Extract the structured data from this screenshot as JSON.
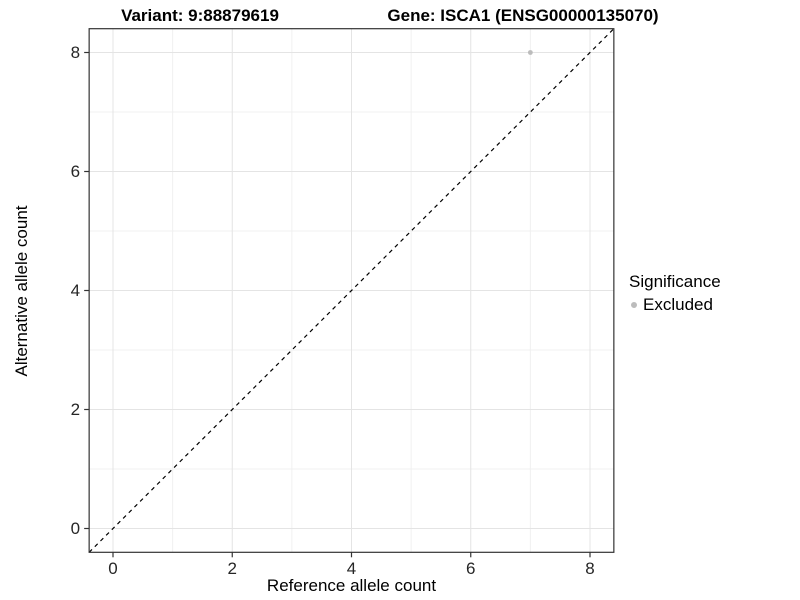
{
  "titles": {
    "variant": "Variant: 9:88879619",
    "gene": "Gene: ISCA1 (ENSG00000135070)"
  },
  "chart_data": {
    "type": "scatter",
    "titles": [
      "Variant: 9:88879619",
      "Gene: ISCA1 (ENSG00000135070)"
    ],
    "xlabel": "Reference allele count",
    "ylabel": "Alternative allele count",
    "xlim": [
      -0.4,
      8.4
    ],
    "ylim": [
      -0.4,
      8.4
    ],
    "x_ticks": [
      0,
      2,
      4,
      6,
      8
    ],
    "y_ticks": [
      0,
      2,
      4,
      6,
      8
    ],
    "x_minor": [
      1,
      3,
      5,
      7
    ],
    "y_minor": [
      1,
      3,
      5,
      7
    ],
    "grid": true,
    "reference_line": {
      "type": "diagonal",
      "equation": "y = x",
      "style": "dashed",
      "color": "#000000"
    },
    "series": [
      {
        "name": "Excluded",
        "marker": "circle",
        "color": "#bcbcbc",
        "points": [
          {
            "x": 7,
            "y": 8
          }
        ]
      }
    ],
    "legend": {
      "title": "Significance",
      "position": "right",
      "entries": [
        {
          "label": "Excluded",
          "color": "#bcbcbc",
          "marker": "circle"
        }
      ]
    }
  },
  "colors": {
    "background": "#ffffff",
    "panel_border": "#333333",
    "grid_major": "#e4e4e4",
    "grid_minor": "#f0f0f0",
    "tick": "#333333",
    "point": "#bcbcbc"
  }
}
